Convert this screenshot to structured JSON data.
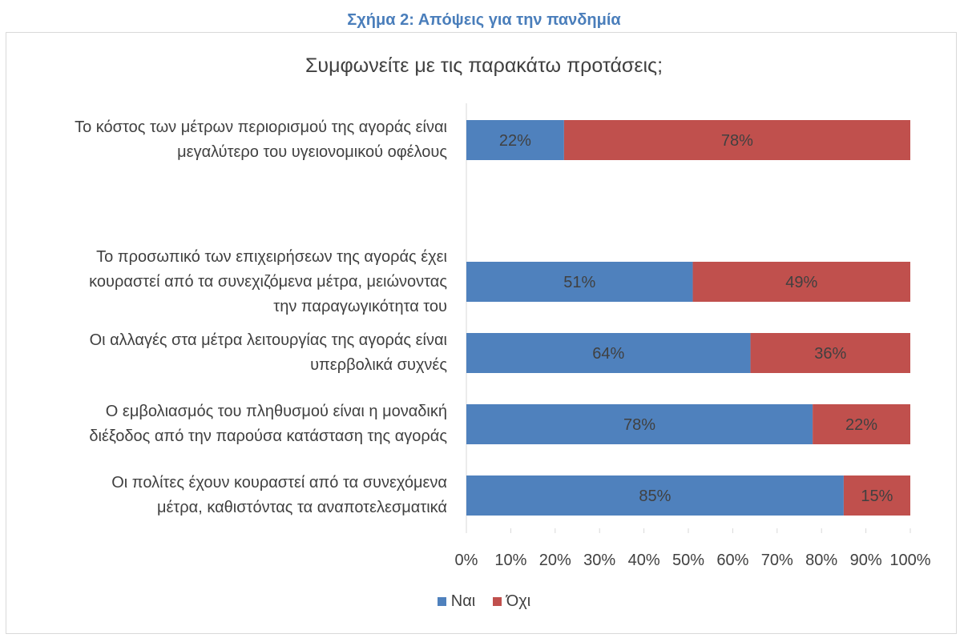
{
  "figure": {
    "caption": "Σχήμα 2: Απόψεις για την πανδημία"
  },
  "colors": {
    "yes": "#4f81bd",
    "no": "#c0504d",
    "axis": "#d9d9d9",
    "text": "#404040"
  },
  "chart_data": {
    "type": "bar",
    "orientation": "horizontal",
    "stacked": "percent",
    "title": "Συμφωνείτε με τις παρακάτω προτάσεις;",
    "categories": [
      [
        "Το κόστος των μέτρων περιορισμού της αγοράς είναι",
        "μεγαλύτερο του υγειονομικού οφέλους"
      ],
      [
        "Το προσωπικό των επιχειρήσεων της αγοράς έχει",
        "κουραστεί από τα συνεχιζόμενα μέτρα, μειώνοντας",
        "την παραγωγικότητα του"
      ],
      [
        "Οι αλλαγές στα μέτρα λειτουργίας της αγοράς είναι",
        "υπερβολικά συχνές"
      ],
      [
        "Ο εμβολιασμός του πληθυσμού είναι η μοναδική",
        "διέξοδος από την παρούσα κατάσταση της αγοράς"
      ],
      [
        "Οι πολίτες έχουν κουραστεί από τα συνεχόμενα",
        "μέτρα, καθιστόντας τα αναποτελεσματικά"
      ]
    ],
    "series": [
      {
        "name": "Ναι",
        "values": [
          22,
          51,
          64,
          78,
          85
        ],
        "labels": [
          "22%",
          "51%",
          "64%",
          "78%",
          "85%"
        ]
      },
      {
        "name": "Όχι",
        "values": [
          78,
          49,
          36,
          22,
          15
        ],
        "labels": [
          "78%",
          "49%",
          "36%",
          "22%",
          "15%"
        ]
      }
    ],
    "xlim": [
      0,
      100
    ],
    "x_ticks": [
      "0%",
      "10%",
      "20%",
      "30%",
      "40%",
      "50%",
      "60%",
      "70%",
      "80%",
      "90%",
      "100%"
    ],
    "grid": false,
    "legend": "bottom"
  }
}
